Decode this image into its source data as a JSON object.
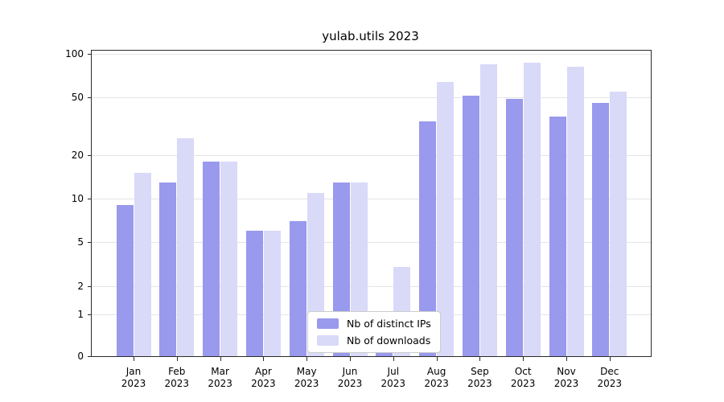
{
  "title": "yulab.utils 2023",
  "chart_data": {
    "type": "bar",
    "title": "yulab.utils 2023",
    "categories": [
      "Jan",
      "Feb",
      "Mar",
      "Apr",
      "May",
      "Jun",
      "Jul",
      "Aug",
      "Sep",
      "Oct",
      "Nov",
      "Dec"
    ],
    "year": "2023",
    "series": [
      {
        "name": "Nb of distinct IPs",
        "color": "#9999ed",
        "values": [
          9,
          13,
          18,
          6,
          7,
          13,
          1,
          34,
          51,
          49,
          37,
          46
        ]
      },
      {
        "name": "Nb of downloads",
        "color": "#d9d9f8",
        "values": [
          15,
          26,
          18,
          6,
          11,
          13,
          3,
          64,
          85,
          87,
          81,
          55
        ]
      }
    ],
    "xlabel": "",
    "ylabel": "",
    "yscale": "symlog",
    "yticks": [
      0,
      1,
      2,
      5,
      10,
      20,
      50,
      100
    ],
    "ylim": [
      0,
      100
    ],
    "grid": "horizontal",
    "legend_position": "bottom-center-inside"
  },
  "legend": {
    "items": [
      {
        "label": "Nb of distinct IPs",
        "color": "#9999ed"
      },
      {
        "label": "Nb of downloads",
        "color": "#d9d9f8"
      }
    ]
  }
}
